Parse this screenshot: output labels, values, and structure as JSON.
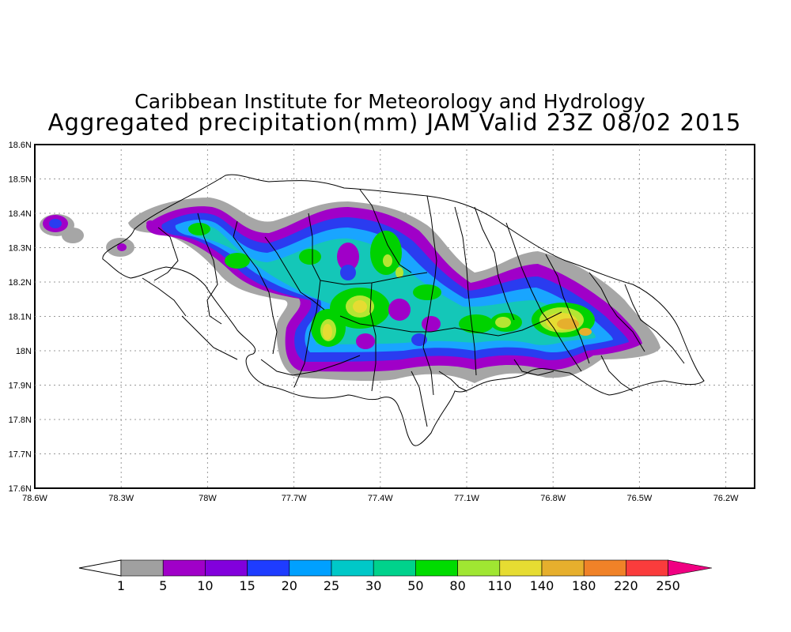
{
  "title": {
    "line1": "Caribbean Institute for Meteorology and Hydrology",
    "line2": "Aggregated precipitation(mm) JAM Valid 23Z 08/02 2015"
  },
  "axes": {
    "lat_ticks": [
      "18.6N",
      "18.5N",
      "18.4N",
      "18.3N",
      "18.2N",
      "18.1N",
      "18N",
      "17.9N",
      "17.8N",
      "17.7N",
      "17.6N"
    ],
    "lon_ticks": [
      "78.6W",
      "78.3W",
      "78W",
      "77.7W",
      "77.4W",
      "77.1W",
      "76.8W",
      "76.5W",
      "76.2W"
    ],
    "lat_range": [
      17.6,
      18.6
    ],
    "lon_range": [
      -78.6,
      -76.1
    ],
    "grid": "dotted"
  },
  "colorbar": {
    "labels": [
      "1",
      "5",
      "10",
      "15",
      "20",
      "25",
      "30",
      "50",
      "80",
      "110",
      "140",
      "180",
      "220",
      "250"
    ],
    "colors": [
      "#a0a0a0",
      "#a000c8",
      "#8200dc",
      "#1e3cff",
      "#00a0ff",
      "#00c8c8",
      "#00d28c",
      "#00dc00",
      "#a0e632",
      "#e6dc32",
      "#e6af2d",
      "#f08228",
      "#fa3c3c",
      "#f00082"
    ],
    "left_triangle": "#ffffff",
    "right_triangle": "#f00082"
  }
}
